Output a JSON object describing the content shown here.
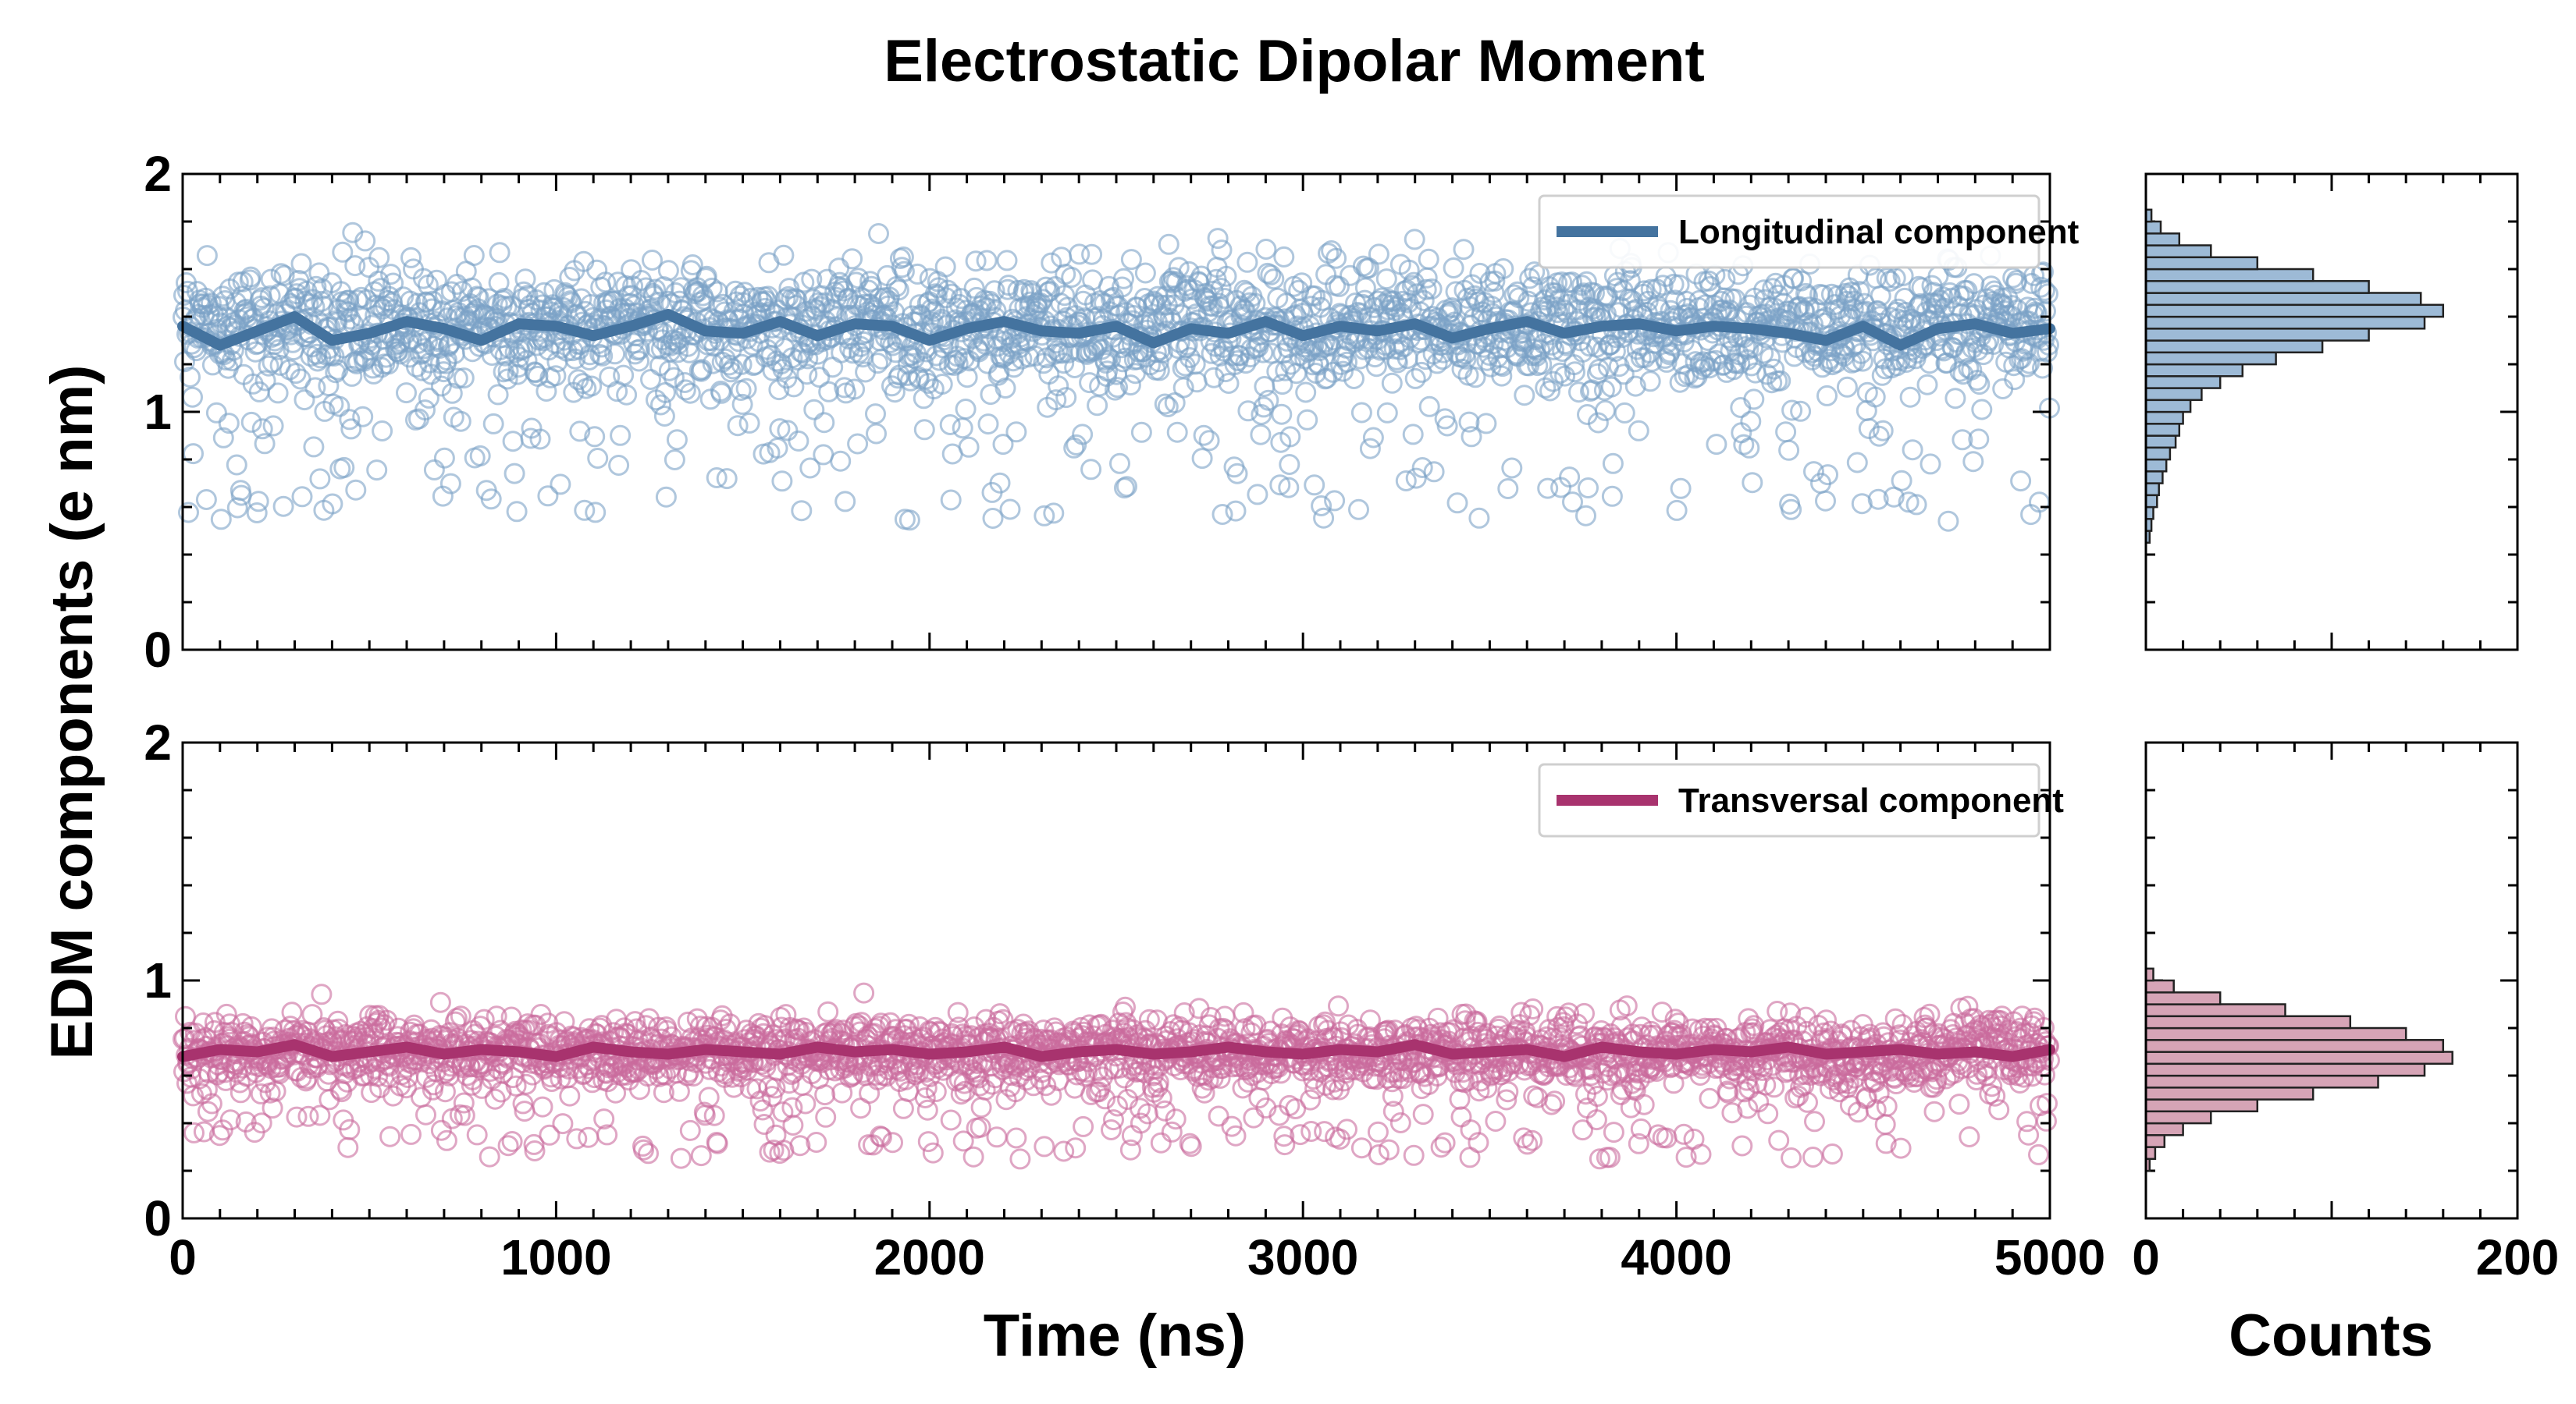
{
  "chart_data": {
    "type": "scatter",
    "title": "Electrostatic Dipolar Moment",
    "ylabel": "EDM components (e nm)",
    "xlabel": "Time (ns)",
    "hist_xlabel": "Counts",
    "xlim": [
      0,
      5000
    ],
    "hist_xlim": [
      0,
      200
    ],
    "ylim": [
      0,
      2
    ],
    "x_ticks": [
      "0",
      "1000",
      "2000",
      "3000",
      "4000",
      "5000"
    ],
    "hist_x_ticks": [
      "0",
      "200"
    ],
    "y_ticks": [
      "0",
      "1",
      "2"
    ],
    "grid": false,
    "legend_position": "top-right",
    "panels": [
      {
        "name": "Longitudinal component",
        "color": "#44739f",
        "marker_color": "#7ba1c7",
        "hist_fill": "#9dbad6",
        "scatter": {
          "n_points": 2400,
          "mean": 1.36,
          "spread": 0.2,
          "low_outlier_min": 0.46,
          "high_max": 1.8
        },
        "running_mean": {
          "x": [
            0,
            100,
            200,
            300,
            400,
            500,
            600,
            700,
            800,
            900,
            1000,
            1100,
            1200,
            1300,
            1400,
            1500,
            1600,
            1700,
            1800,
            1900,
            2000,
            2100,
            2200,
            2300,
            2400,
            2500,
            2600,
            2700,
            2800,
            2900,
            3000,
            3100,
            3200,
            3300,
            3400,
            3500,
            3600,
            3700,
            3800,
            3900,
            4000,
            4100,
            4200,
            4300,
            4400,
            4500,
            4600,
            4700,
            4800,
            4900,
            5000
          ],
          "y": [
            1.36,
            1.28,
            1.34,
            1.4,
            1.3,
            1.33,
            1.38,
            1.35,
            1.3,
            1.37,
            1.36,
            1.32,
            1.36,
            1.41,
            1.34,
            1.33,
            1.38,
            1.32,
            1.37,
            1.36,
            1.3,
            1.35,
            1.38,
            1.34,
            1.33,
            1.36,
            1.29,
            1.35,
            1.33,
            1.38,
            1.32,
            1.36,
            1.34,
            1.37,
            1.31,
            1.35,
            1.38,
            1.33,
            1.36,
            1.37,
            1.34,
            1.36,
            1.35,
            1.33,
            1.3,
            1.36,
            1.28,
            1.35,
            1.37,
            1.33,
            1.35
          ]
        },
        "histogram": {
          "bin_edges": [
            0.45,
            0.5,
            0.55,
            0.6,
            0.65,
            0.7,
            0.75,
            0.8,
            0.85,
            0.9,
            0.95,
            1.0,
            1.05,
            1.1,
            1.15,
            1.2,
            1.25,
            1.3,
            1.35,
            1.4,
            1.45,
            1.5,
            1.55,
            1.6,
            1.65,
            1.7,
            1.75,
            1.8,
            1.85
          ],
          "counts": [
            2,
            3,
            4,
            6,
            7,
            9,
            11,
            13,
            16,
            18,
            20,
            24,
            30,
            40,
            52,
            70,
            95,
            120,
            150,
            160,
            148,
            120,
            90,
            60,
            35,
            18,
            8,
            3
          ]
        }
      },
      {
        "name": "Transversal component",
        "color": "#a8336e",
        "marker_color": "#c96a9c",
        "hist_fill": "#d6a4b6",
        "scatter": {
          "n_points": 2400,
          "mean": 0.7,
          "spread": 0.11,
          "low_outlier_min": 0.2,
          "high_max": 1.02
        },
        "running_mean": {
          "x": [
            0,
            100,
            200,
            300,
            400,
            500,
            600,
            700,
            800,
            900,
            1000,
            1100,
            1200,
            1300,
            1400,
            1500,
            1600,
            1700,
            1800,
            1900,
            2000,
            2100,
            2200,
            2300,
            2400,
            2500,
            2600,
            2700,
            2800,
            2900,
            3000,
            3100,
            3200,
            3300,
            3400,
            3500,
            3600,
            3700,
            3800,
            3900,
            4000,
            4100,
            4200,
            4300,
            4400,
            4500,
            4600,
            4700,
            4800,
            4900,
            5000
          ],
          "y": [
            0.68,
            0.71,
            0.7,
            0.73,
            0.68,
            0.7,
            0.72,
            0.69,
            0.71,
            0.7,
            0.68,
            0.72,
            0.7,
            0.69,
            0.71,
            0.7,
            0.69,
            0.72,
            0.7,
            0.71,
            0.69,
            0.7,
            0.72,
            0.68,
            0.7,
            0.71,
            0.69,
            0.7,
            0.72,
            0.7,
            0.69,
            0.71,
            0.7,
            0.73,
            0.69,
            0.7,
            0.71,
            0.68,
            0.72,
            0.7,
            0.69,
            0.71,
            0.7,
            0.72,
            0.69,
            0.7,
            0.71,
            0.69,
            0.7,
            0.68,
            0.71
          ]
        },
        "histogram": {
          "bin_edges": [
            0.2,
            0.25,
            0.3,
            0.35,
            0.4,
            0.45,
            0.5,
            0.55,
            0.6,
            0.65,
            0.7,
            0.75,
            0.8,
            0.85,
            0.9,
            0.95,
            1.0,
            1.05
          ],
          "counts": [
            2,
            5,
            10,
            20,
            35,
            60,
            90,
            125,
            150,
            165,
            160,
            140,
            110,
            75,
            40,
            15,
            4
          ]
        }
      }
    ]
  }
}
